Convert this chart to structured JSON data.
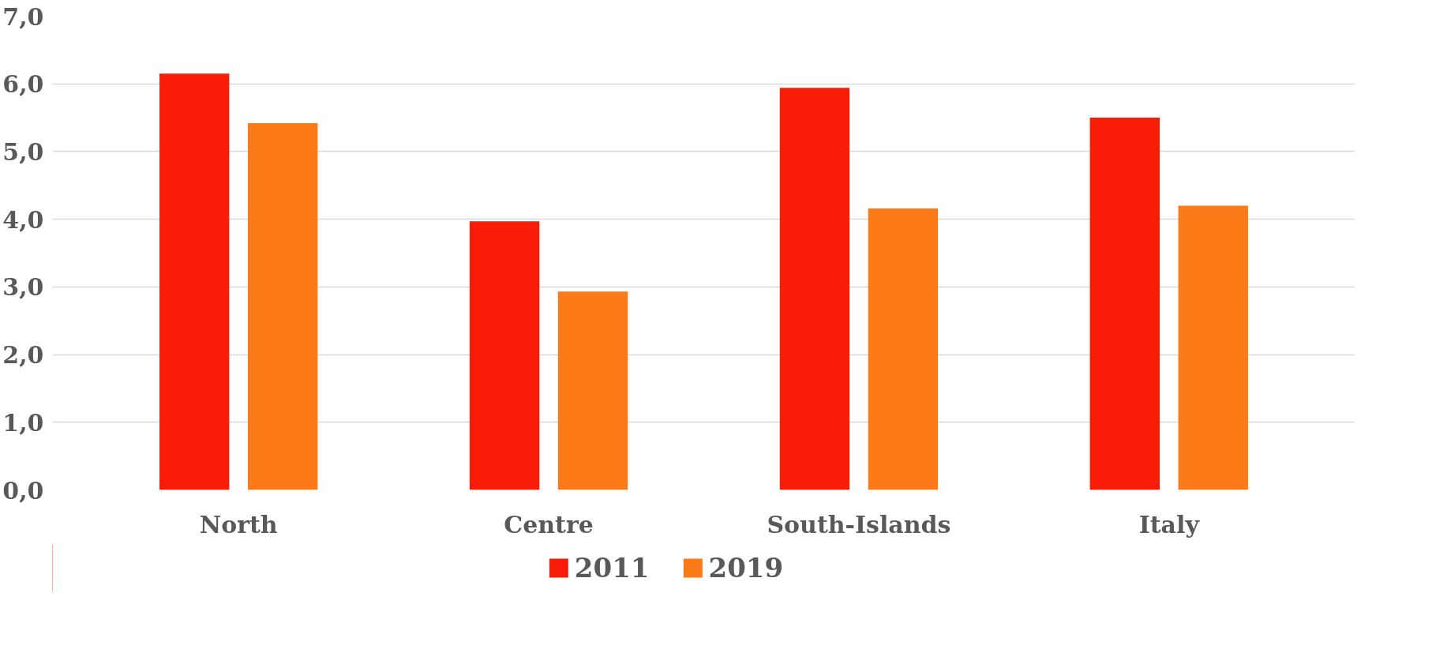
{
  "chart_data": {
    "type": "bar",
    "categories": [
      "North",
      "Centre",
      "South-Islands",
      "Italy"
    ],
    "series": [
      {
        "name": "2011",
        "color": "#f91c06",
        "values": [
          6.15,
          3.97,
          5.94,
          5.5
        ]
      },
      {
        "name": "2019",
        "color": "#fc7a17",
        "values": [
          5.42,
          2.93,
          4.16,
          4.2
        ]
      }
    ],
    "ylim": [
      0,
      7
    ],
    "yticks": [
      {
        "value": 0,
        "label": "0,0"
      },
      {
        "value": 1,
        "label": "1,0"
      },
      {
        "value": 2,
        "label": "2,0"
      },
      {
        "value": 3,
        "label": "3,0"
      },
      {
        "value": 4,
        "label": "4,0"
      },
      {
        "value": 5,
        "label": "5,0"
      },
      {
        "value": 6,
        "label": "6,0"
      },
      {
        "value": 7,
        "label": "7,0"
      }
    ],
    "grid": "y",
    "legend": "bottom"
  }
}
